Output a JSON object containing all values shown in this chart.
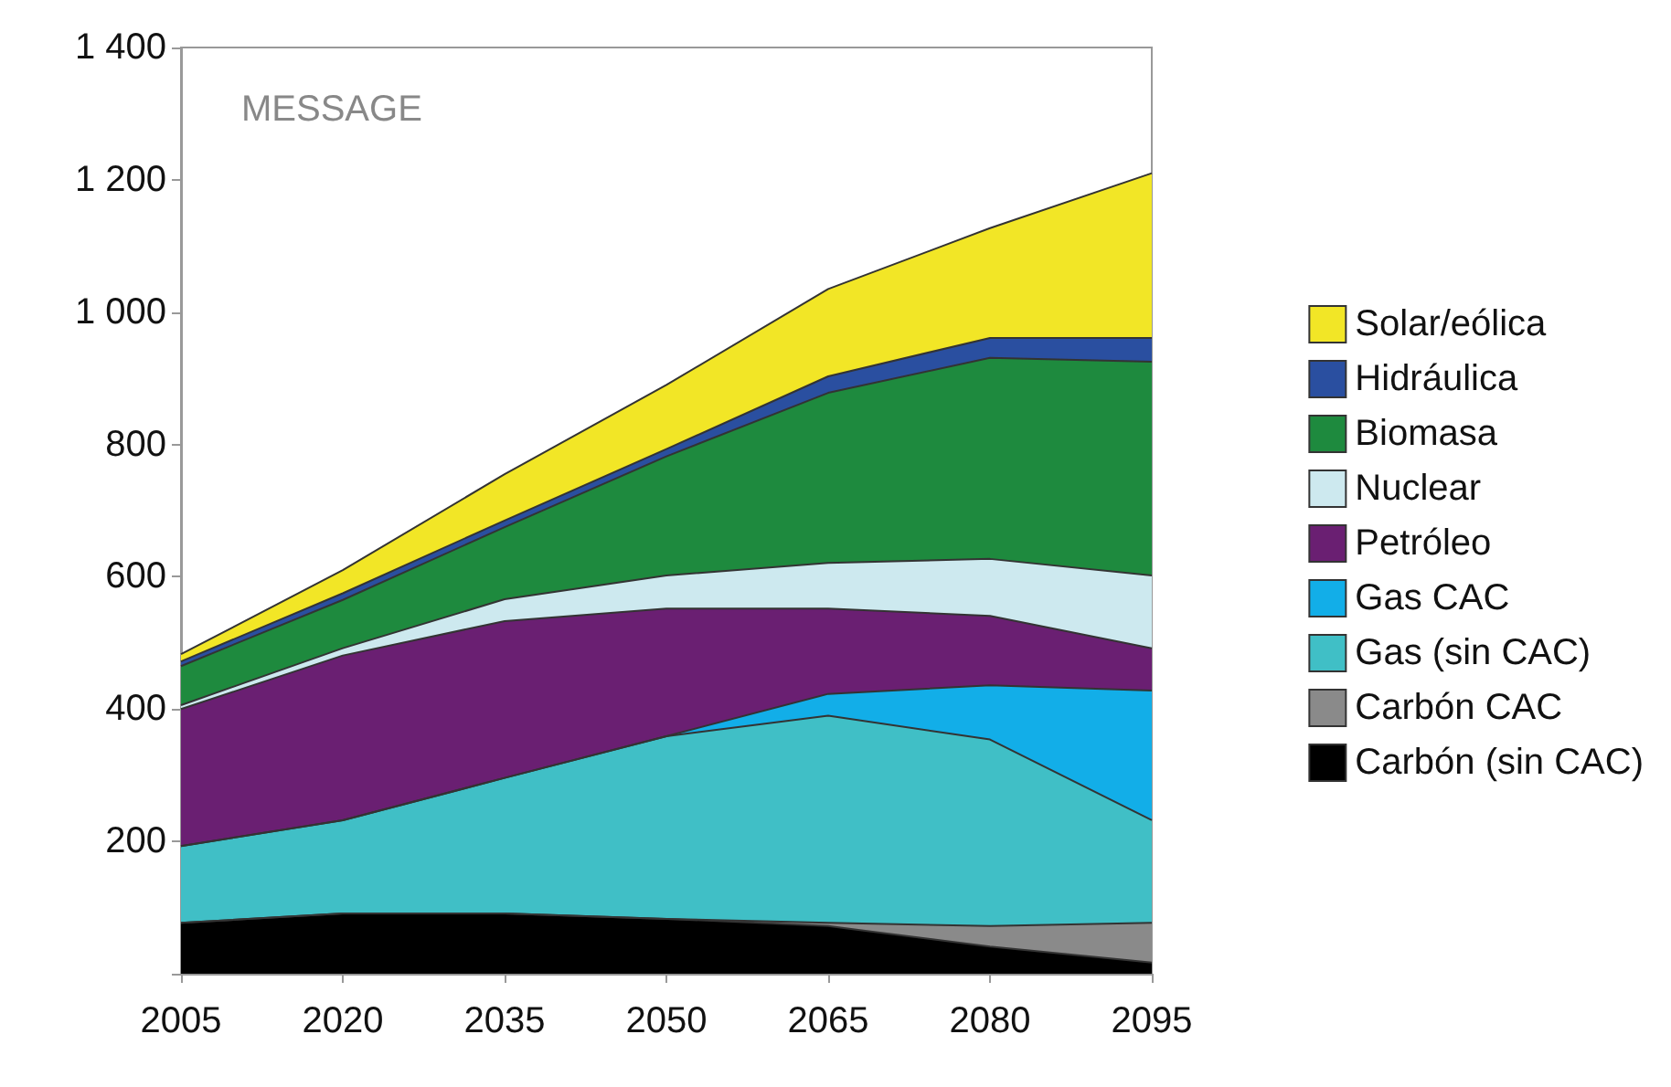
{
  "chart_data": {
    "type": "area",
    "stacked": true,
    "annotations": [
      "MESSAGE"
    ],
    "categories": [
      "2005",
      "2020",
      "2035",
      "2050",
      "2065",
      "2080",
      "2095"
    ],
    "ylim": [
      0,
      1400
    ],
    "yticks": [
      {
        "value": 0,
        "label": null
      },
      200,
      400,
      600,
      800,
      {
        "value": 1000,
        "label": "1 000"
      },
      {
        "value": 1200,
        "label": "1 200"
      },
      {
        "value": 1400,
        "label": "1 400"
      }
    ],
    "legend": "right",
    "grid": false,
    "series": [
      {
        "name": "Carbón (sin CAC)",
        "color": "#000000",
        "values": [
          77,
          91,
          91,
          83,
          72,
          41,
          17
        ]
      },
      {
        "name": "Carbón CAC",
        "color": "#8a8a8a",
        "values": [
          0,
          0,
          0,
          0,
          5,
          31,
          60
        ]
      },
      {
        "name": "Gas (sin CAC)",
        "color": "#40bfc6",
        "values": [
          116,
          141,
          205,
          276,
          313,
          282,
          155
        ]
      },
      {
        "name": "Gas CAC",
        "color": "#12aee8",
        "values": [
          0,
          0,
          0,
          0,
          33,
          82,
          196
        ]
      },
      {
        "name": "Petróleo",
        "color": "#6a1f72",
        "values": [
          207,
          249,
          237,
          193,
          129,
          105,
          64
        ]
      },
      {
        "name": "Nuclear",
        "color": "#cde9ef",
        "values": [
          6,
          11,
          33,
          50,
          69,
          86,
          110
        ]
      },
      {
        "name": "Biomasa",
        "color": "#1e8a3e",
        "values": [
          59,
          73,
          109,
          180,
          257,
          304,
          323
        ]
      },
      {
        "name": "Hidráulica",
        "color": "#2a4fa0",
        "values": [
          7,
          10,
          10,
          11,
          25,
          30,
          36
        ]
      },
      {
        "name": "Solar/eólica",
        "color": "#f2e626",
        "values": [
          11,
          35,
          70,
          97,
          132,
          166,
          249
        ]
      }
    ]
  }
}
